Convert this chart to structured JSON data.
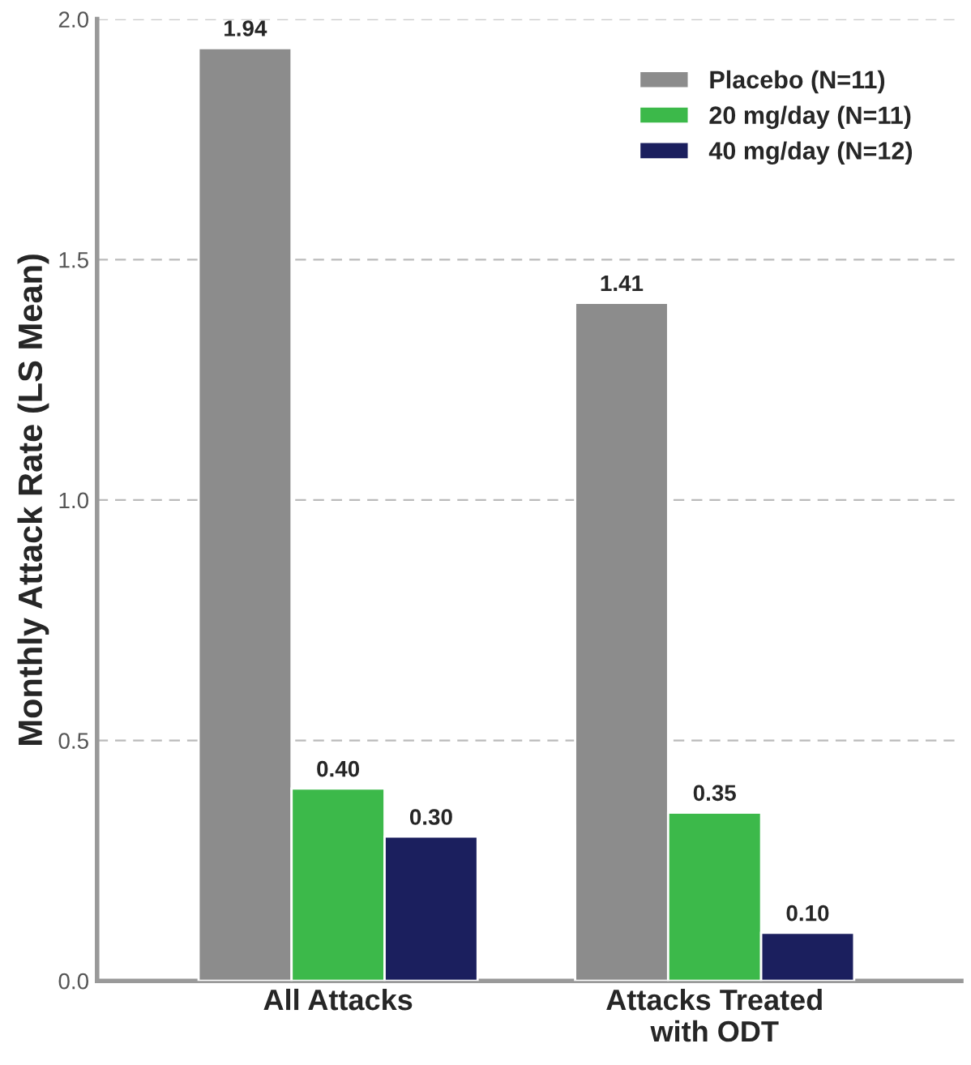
{
  "chart_data": {
    "type": "bar",
    "ylabel": "Monthly Attack Rate (LS Mean)",
    "categories": [
      "All Attacks",
      "Attacks Treated\nwith ODT"
    ],
    "series": [
      {
        "name": "Placebo (N=11)",
        "color": "#8c8c8c",
        "values": [
          1.94,
          1.41
        ],
        "value_labels": [
          "1.94",
          "1.41"
        ]
      },
      {
        "name": "20 mg/day (N=11)",
        "color": "#3cb94a",
        "values": [
          0.4,
          0.35
        ],
        "value_labels": [
          "0.40",
          "0.35"
        ]
      },
      {
        "name": "40 mg/day (N=12)",
        "color": "#1b1f5e",
        "values": [
          0.3,
          0.1
        ],
        "value_labels": [
          "0.30",
          "0.10"
        ]
      }
    ],
    "ylim": [
      0,
      2.0
    ],
    "yticks": [
      {
        "value": 0,
        "label": "0.0"
      },
      0.5,
      {
        "value": 1,
        "label": "1.0"
      },
      1.5,
      {
        "value": 2,
        "label": "2.0"
      }
    ],
    "grid": "y",
    "legend": "top right"
  }
}
